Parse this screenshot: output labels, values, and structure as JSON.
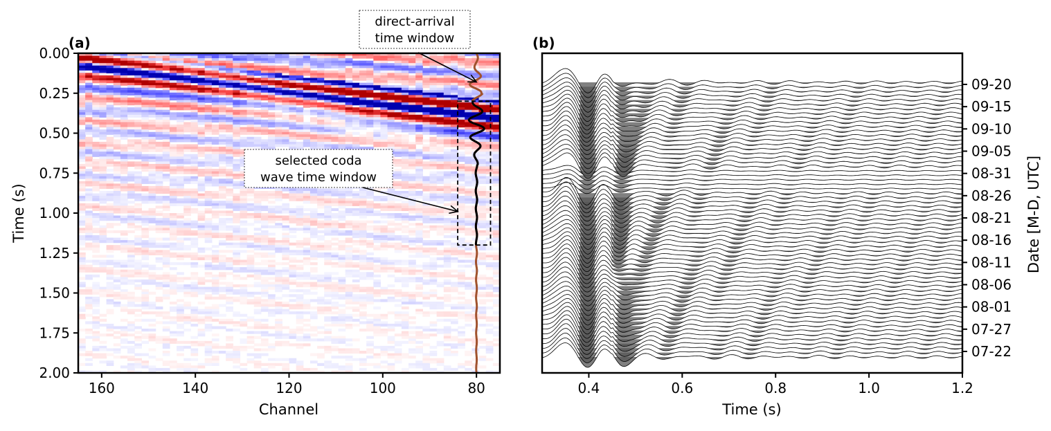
{
  "chart_data": [
    {
      "panel_label": "(a)",
      "type": "heatmap",
      "xlabel": "Channel",
      "ylabel": "Time (s)",
      "xlim": [
        165,
        75
      ],
      "ylim": [
        2.0,
        0.0
      ],
      "xticks": [
        160,
        140,
        120,
        100,
        80
      ],
      "yticks": [
        0.0,
        0.25,
        0.5,
        0.75,
        1.0,
        1.25,
        1.5,
        1.75,
        2.0
      ],
      "ytick_labels": [
        "0.00",
        "0.25",
        "0.50",
        "0.75",
        "1.00",
        "1.25",
        "1.50",
        "1.75",
        "2.00"
      ],
      "colormap": "seismic (blue-white-red)",
      "highlighted_channel": 80,
      "highlighted_channel_color": "#a0522d",
      "coda_window": {
        "channel_range": [
          84,
          77
        ],
        "time_range": [
          0.3,
          1.2
        ]
      },
      "annotations": [
        {
          "text_lines": [
            "direct-arrival",
            "time window"
          ],
          "points_to": {
            "channel": 80,
            "time": 0.18
          }
        },
        {
          "text_lines": [
            "selected coda",
            "wave time window"
          ],
          "points_to": {
            "channel": 84,
            "time": 0.99
          }
        }
      ],
      "colors": {
        "positive": "#cc0000",
        "negative": "#0000cc",
        "trace": "#000000"
      }
    },
    {
      "panel_label": "(b)",
      "type": "line",
      "subtype": "wiggle traces, negative lobes filled grey",
      "xlabel": "Time (s)",
      "ylabel": "Date [M-D, UTC]",
      "xlim": [
        0.3,
        1.2
      ],
      "xticks": [
        0.4,
        0.6,
        0.8,
        1.0,
        1.2
      ],
      "xtick_labels": [
        "0.4",
        "0.6",
        "0.8",
        "1.0",
        "1.2"
      ],
      "date_ticks": [
        "09-20",
        "09-15",
        "09-10",
        "09-05",
        "08-31",
        "08-26",
        "08-21",
        "08-16",
        "08-11",
        "08-06",
        "08-01",
        "07-27",
        "07-22"
      ],
      "date_range": [
        "07-20",
        "09-20"
      ],
      "n_traces": 63,
      "trace_color": "#000000",
      "fill_color": "#555555"
    }
  ]
}
